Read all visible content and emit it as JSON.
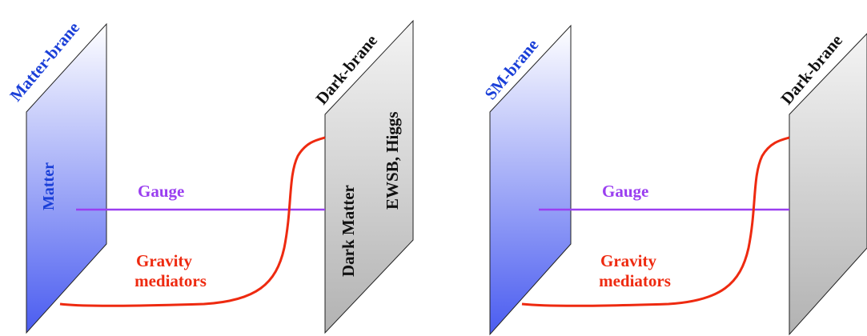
{
  "diagrams": [
    {
      "matter_brane": {
        "title": "Matter-brane",
        "label": "Matter"
      },
      "dark_brane": {
        "title": "Dark-brane",
        "labels": [
          "Dark Matter",
          "EWSB, Higgs"
        ]
      },
      "gauge_label": "Gauge",
      "gravity_label_line1": "Gravity",
      "gravity_label_line2": "mediators"
    },
    {
      "matter_brane": {
        "title": "SM-brane",
        "label": ""
      },
      "dark_brane": {
        "title": "Dark-brane",
        "labels": []
      },
      "gauge_label": "Gauge",
      "gravity_label_line1": "Gravity",
      "gravity_label_line2": "mediators"
    }
  ],
  "colors": {
    "matter_brane_top": "#ffffff",
    "matter_brane_bottom": "#4a5cf0",
    "dark_brane_top": "#f2f2f2",
    "dark_brane_bottom": "#b4b4b4",
    "brane_title_blue": "#1a3fd8",
    "gauge": "#9a3ff0",
    "gravity": "#ee2a10",
    "text_dark": "#111111"
  }
}
